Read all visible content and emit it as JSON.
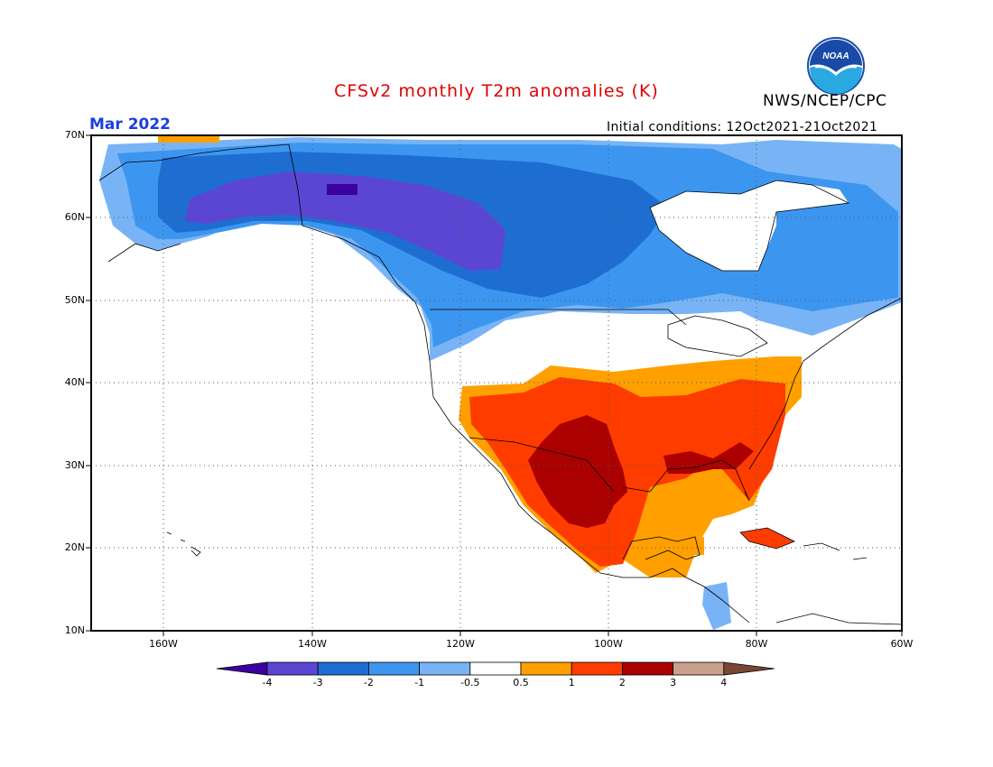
{
  "title": "CFSv2 monthly T2m anomalies (K)",
  "organization": "NWS/NCEP/CPC",
  "logo_text": "NOAA",
  "valid_month": "Mar 2022",
  "initial_conditions": "Initial conditions: 12Oct2021-21Oct2021",
  "lat_labels": [
    "70N",
    "60N",
    "50N",
    "40N",
    "30N",
    "20N",
    "10N"
  ],
  "lon_labels": [
    "160W",
    "140W",
    "120W",
    "100W",
    "80W",
    "60W"
  ],
  "colorbar": {
    "labels": [
      "-4",
      "-3",
      "-2",
      "-1",
      "-0.5",
      "0.5",
      "1",
      "2",
      "3",
      "4"
    ],
    "colors": [
      "#3c00a0",
      "#5a46d2",
      "#1e6ed2",
      "#3c96f0",
      "#78b4f5",
      "#ffffff",
      "#ffa000",
      "#ff3c00",
      "#aa0000",
      "#c8a08c",
      "#784632"
    ]
  }
}
